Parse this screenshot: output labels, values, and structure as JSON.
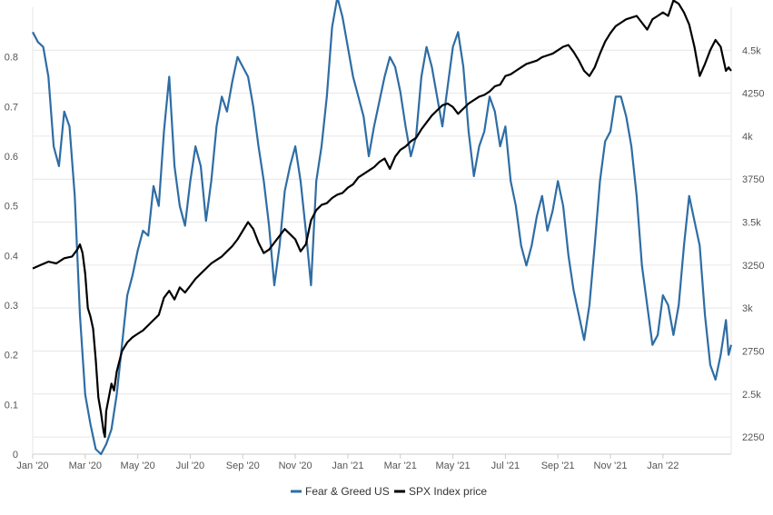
{
  "chart_data": {
    "type": "line",
    "x_ticks": [
      "Jan '20",
      "Mar '20",
      "May '20",
      "Jul '20",
      "Sep '20",
      "Nov '20",
      "Jan '21",
      "Mar '21",
      "May '21",
      "Jul '21",
      "Sep '21",
      "Nov '21",
      "Jan '22"
    ],
    "y_left_ticks": [
      "0",
      "0.1",
      "0.2",
      "0.3",
      "0.4",
      "0.5",
      "0.6",
      "0.7",
      "0.8"
    ],
    "y_right_ticks": [
      "2250",
      "2.5k",
      "2750",
      "3k",
      "3250",
      "3.5k",
      "3750",
      "4k",
      "4250",
      "4.5k"
    ],
    "y_left_range": [
      0,
      0.9
    ],
    "y_right_range": [
      2150,
      4750
    ],
    "x_range_months": [
      0,
      26.6
    ],
    "grid": true,
    "legend_position": "bottom-center",
    "series": [
      {
        "name": "Fear & Greed US",
        "color": "#2e6da4",
        "axis": "left",
        "points": [
          [
            0.0,
            0.85
          ],
          [
            0.2,
            0.83
          ],
          [
            0.4,
            0.82
          ],
          [
            0.6,
            0.76
          ],
          [
            0.8,
            0.62
          ],
          [
            1.0,
            0.58
          ],
          [
            1.2,
            0.69
          ],
          [
            1.4,
            0.66
          ],
          [
            1.6,
            0.52
          ],
          [
            1.8,
            0.28
          ],
          [
            2.0,
            0.12
          ],
          [
            2.2,
            0.06
          ],
          [
            2.4,
            0.01
          ],
          [
            2.6,
            0.0
          ],
          [
            2.8,
            0.02
          ],
          [
            3.0,
            0.05
          ],
          [
            3.2,
            0.12
          ],
          [
            3.4,
            0.22
          ],
          [
            3.6,
            0.32
          ],
          [
            3.8,
            0.36
          ],
          [
            4.0,
            0.41
          ],
          [
            4.2,
            0.45
          ],
          [
            4.4,
            0.44
          ],
          [
            4.6,
            0.54
          ],
          [
            4.8,
            0.5
          ],
          [
            5.0,
            0.65
          ],
          [
            5.2,
            0.76
          ],
          [
            5.4,
            0.58
          ],
          [
            5.6,
            0.5
          ],
          [
            5.8,
            0.46
          ],
          [
            6.0,
            0.55
          ],
          [
            6.2,
            0.62
          ],
          [
            6.4,
            0.58
          ],
          [
            6.6,
            0.47
          ],
          [
            6.8,
            0.55
          ],
          [
            7.0,
            0.66
          ],
          [
            7.2,
            0.72
          ],
          [
            7.4,
            0.69
          ],
          [
            7.6,
            0.75
          ],
          [
            7.8,
            0.8
          ],
          [
            8.0,
            0.78
          ],
          [
            8.2,
            0.76
          ],
          [
            8.4,
            0.7
          ],
          [
            8.6,
            0.62
          ],
          [
            8.8,
            0.55
          ],
          [
            9.0,
            0.46
          ],
          [
            9.2,
            0.34
          ],
          [
            9.4,
            0.42
          ],
          [
            9.6,
            0.53
          ],
          [
            9.8,
            0.58
          ],
          [
            10.0,
            0.62
          ],
          [
            10.2,
            0.55
          ],
          [
            10.4,
            0.45
          ],
          [
            10.6,
            0.34
          ],
          [
            10.8,
            0.55
          ],
          [
            11.0,
            0.62
          ],
          [
            11.2,
            0.72
          ],
          [
            11.4,
            0.86
          ],
          [
            11.6,
            0.92
          ],
          [
            11.8,
            0.88
          ],
          [
            12.0,
            0.82
          ],
          [
            12.2,
            0.76
          ],
          [
            12.4,
            0.72
          ],
          [
            12.6,
            0.68
          ],
          [
            12.8,
            0.6
          ],
          [
            13.0,
            0.66
          ],
          [
            13.2,
            0.71
          ],
          [
            13.4,
            0.76
          ],
          [
            13.6,
            0.8
          ],
          [
            13.8,
            0.78
          ],
          [
            14.0,
            0.73
          ],
          [
            14.2,
            0.66
          ],
          [
            14.4,
            0.6
          ],
          [
            14.6,
            0.64
          ],
          [
            14.8,
            0.76
          ],
          [
            15.0,
            0.82
          ],
          [
            15.2,
            0.78
          ],
          [
            15.4,
            0.72
          ],
          [
            15.6,
            0.66
          ],
          [
            15.8,
            0.74
          ],
          [
            16.0,
            0.82
          ],
          [
            16.2,
            0.85
          ],
          [
            16.4,
            0.78
          ],
          [
            16.6,
            0.65
          ],
          [
            16.8,
            0.56
          ],
          [
            17.0,
            0.62
          ],
          [
            17.2,
            0.65
          ],
          [
            17.4,
            0.72
          ],
          [
            17.6,
            0.69
          ],
          [
            17.8,
            0.62
          ],
          [
            18.0,
            0.66
          ],
          [
            18.2,
            0.55
          ],
          [
            18.4,
            0.5
          ],
          [
            18.6,
            0.42
          ],
          [
            18.8,
            0.38
          ],
          [
            19.0,
            0.42
          ],
          [
            19.2,
            0.48
          ],
          [
            19.4,
            0.52
          ],
          [
            19.6,
            0.45
          ],
          [
            19.8,
            0.49
          ],
          [
            20.0,
            0.55
          ],
          [
            20.2,
            0.5
          ],
          [
            20.4,
            0.4
          ],
          [
            20.6,
            0.33
          ],
          [
            20.8,
            0.28
          ],
          [
            21.0,
            0.23
          ],
          [
            21.2,
            0.3
          ],
          [
            21.4,
            0.42
          ],
          [
            21.6,
            0.55
          ],
          [
            21.8,
            0.63
          ],
          [
            22.0,
            0.65
          ],
          [
            22.2,
            0.72
          ],
          [
            22.4,
            0.72
          ],
          [
            22.6,
            0.68
          ],
          [
            22.8,
            0.62
          ],
          [
            23.0,
            0.52
          ],
          [
            23.2,
            0.38
          ],
          [
            23.4,
            0.3
          ],
          [
            23.6,
            0.22
          ],
          [
            23.8,
            0.24
          ],
          [
            24.0,
            0.32
          ],
          [
            24.2,
            0.3
          ],
          [
            24.4,
            0.24
          ],
          [
            24.6,
            0.3
          ],
          [
            24.8,
            0.42
          ],
          [
            25.0,
            0.52
          ],
          [
            25.2,
            0.47
          ],
          [
            25.4,
            0.42
          ],
          [
            25.6,
            0.28
          ],
          [
            25.8,
            0.18
          ],
          [
            26.0,
            0.15
          ],
          [
            26.2,
            0.2
          ],
          [
            26.4,
            0.27
          ],
          [
            26.5,
            0.2
          ],
          [
            26.6,
            0.22
          ]
        ]
      },
      {
        "name": "SPX Index price",
        "color": "#000000",
        "axis": "right",
        "points": [
          [
            0.0,
            3230
          ],
          [
            0.3,
            3250
          ],
          [
            0.6,
            3270
          ],
          [
            0.9,
            3260
          ],
          [
            1.2,
            3290
          ],
          [
            1.5,
            3300
          ],
          [
            1.7,
            3340
          ],
          [
            1.8,
            3370
          ],
          [
            1.9,
            3320
          ],
          [
            2.0,
            3200
          ],
          [
            2.1,
            3000
          ],
          [
            2.2,
            2950
          ],
          [
            2.3,
            2880
          ],
          [
            2.4,
            2700
          ],
          [
            2.5,
            2480
          ],
          [
            2.6,
            2390
          ],
          [
            2.7,
            2280
          ],
          [
            2.75,
            2250
          ],
          [
            2.8,
            2400
          ],
          [
            2.9,
            2480
          ],
          [
            3.0,
            2560
          ],
          [
            3.1,
            2520
          ],
          [
            3.2,
            2630
          ],
          [
            3.4,
            2750
          ],
          [
            3.6,
            2800
          ],
          [
            3.8,
            2830
          ],
          [
            4.0,
            2850
          ],
          [
            4.2,
            2870
          ],
          [
            4.4,
            2900
          ],
          [
            4.6,
            2930
          ],
          [
            4.8,
            2960
          ],
          [
            5.0,
            3060
          ],
          [
            5.2,
            3100
          ],
          [
            5.4,
            3050
          ],
          [
            5.6,
            3120
          ],
          [
            5.8,
            3090
          ],
          [
            6.0,
            3130
          ],
          [
            6.2,
            3170
          ],
          [
            6.4,
            3200
          ],
          [
            6.6,
            3230
          ],
          [
            6.8,
            3260
          ],
          [
            7.0,
            3280
          ],
          [
            7.2,
            3300
          ],
          [
            7.4,
            3330
          ],
          [
            7.6,
            3360
          ],
          [
            7.8,
            3400
          ],
          [
            8.0,
            3450
          ],
          [
            8.2,
            3500
          ],
          [
            8.4,
            3460
          ],
          [
            8.6,
            3380
          ],
          [
            8.8,
            3320
          ],
          [
            9.0,
            3340
          ],
          [
            9.2,
            3380
          ],
          [
            9.4,
            3420
          ],
          [
            9.6,
            3460
          ],
          [
            9.8,
            3430
          ],
          [
            10.0,
            3400
          ],
          [
            10.2,
            3330
          ],
          [
            10.4,
            3370
          ],
          [
            10.6,
            3510
          ],
          [
            10.8,
            3570
          ],
          [
            11.0,
            3600
          ],
          [
            11.2,
            3610
          ],
          [
            11.4,
            3640
          ],
          [
            11.6,
            3660
          ],
          [
            11.8,
            3670
          ],
          [
            12.0,
            3700
          ],
          [
            12.2,
            3720
          ],
          [
            12.4,
            3760
          ],
          [
            12.6,
            3780
          ],
          [
            12.8,
            3800
          ],
          [
            13.0,
            3820
          ],
          [
            13.2,
            3850
          ],
          [
            13.4,
            3870
          ],
          [
            13.6,
            3810
          ],
          [
            13.8,
            3880
          ],
          [
            14.0,
            3920
          ],
          [
            14.2,
            3940
          ],
          [
            14.4,
            3970
          ],
          [
            14.6,
            3990
          ],
          [
            14.8,
            4040
          ],
          [
            15.0,
            4080
          ],
          [
            15.2,
            4120
          ],
          [
            15.4,
            4150
          ],
          [
            15.6,
            4180
          ],
          [
            15.8,
            4190
          ],
          [
            16.0,
            4170
          ],
          [
            16.2,
            4130
          ],
          [
            16.4,
            4160
          ],
          [
            16.6,
            4190
          ],
          [
            16.8,
            4210
          ],
          [
            17.0,
            4230
          ],
          [
            17.2,
            4240
          ],
          [
            17.4,
            4260
          ],
          [
            17.6,
            4290
          ],
          [
            17.8,
            4300
          ],
          [
            18.0,
            4350
          ],
          [
            18.2,
            4360
          ],
          [
            18.4,
            4380
          ],
          [
            18.6,
            4400
          ],
          [
            18.8,
            4420
          ],
          [
            19.0,
            4430
          ],
          [
            19.2,
            4440
          ],
          [
            19.4,
            4460
          ],
          [
            19.6,
            4470
          ],
          [
            19.8,
            4480
          ],
          [
            20.0,
            4500
          ],
          [
            20.2,
            4520
          ],
          [
            20.4,
            4530
          ],
          [
            20.6,
            4490
          ],
          [
            20.8,
            4440
          ],
          [
            21.0,
            4380
          ],
          [
            21.2,
            4350
          ],
          [
            21.4,
            4400
          ],
          [
            21.6,
            4480
          ],
          [
            21.8,
            4550
          ],
          [
            22.0,
            4600
          ],
          [
            22.2,
            4640
          ],
          [
            22.4,
            4660
          ],
          [
            22.6,
            4680
          ],
          [
            22.8,
            4690
          ],
          [
            23.0,
            4700
          ],
          [
            23.2,
            4660
          ],
          [
            23.4,
            4620
          ],
          [
            23.6,
            4680
          ],
          [
            23.8,
            4700
          ],
          [
            24.0,
            4720
          ],
          [
            24.2,
            4700
          ],
          [
            24.4,
            4790
          ],
          [
            24.6,
            4770
          ],
          [
            24.8,
            4720
          ],
          [
            25.0,
            4650
          ],
          [
            25.2,
            4520
          ],
          [
            25.4,
            4350
          ],
          [
            25.6,
            4420
          ],
          [
            25.8,
            4500
          ],
          [
            26.0,
            4560
          ],
          [
            26.2,
            4520
          ],
          [
            26.4,
            4380
          ],
          [
            26.5,
            4400
          ],
          [
            26.6,
            4380
          ]
        ]
      }
    ]
  }
}
